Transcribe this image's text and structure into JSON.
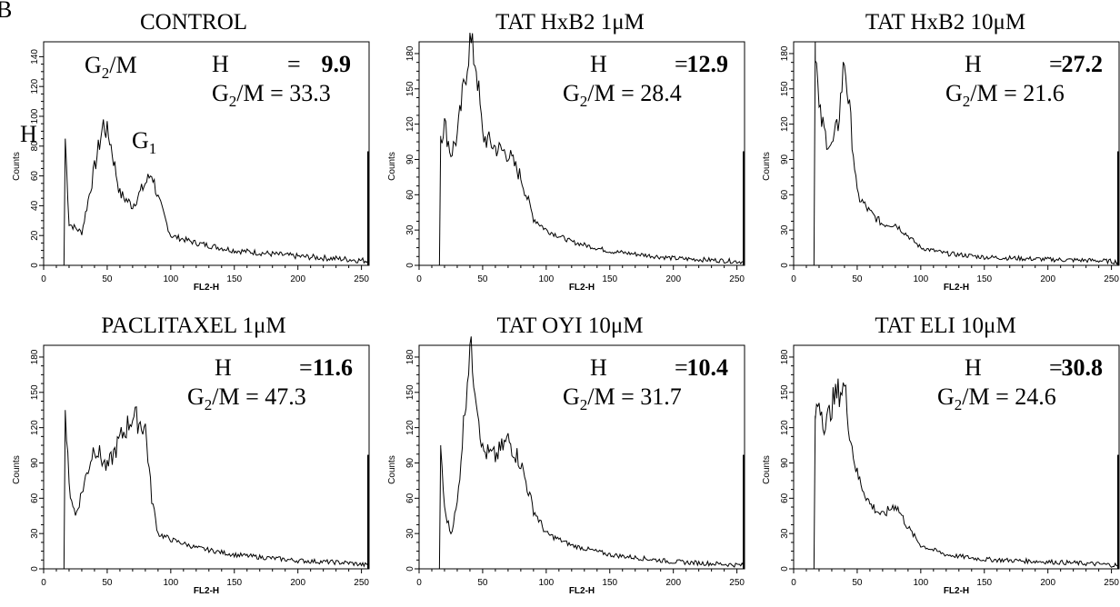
{
  "panel_letter": "B",
  "chart_data": [
    {
      "type": "line",
      "title": "CONTROL",
      "xlabel": "FL2-H",
      "ylabel": "Counts",
      "xlim": [
        0,
        256
      ],
      "ylim": [
        0,
        150
      ],
      "xticks": [
        0,
        50,
        100,
        150,
        200,
        250
      ],
      "yticks": [
        0,
        20,
        40,
        60,
        80,
        100,
        120,
        140
      ],
      "x": [
        16,
        17,
        20,
        30,
        40,
        47,
        52,
        60,
        70,
        80,
        85,
        90,
        100,
        120,
        150,
        200,
        240,
        255
      ],
      "values": [
        0,
        85,
        28,
        22,
        65,
        95,
        85,
        48,
        40,
        55,
        62,
        45,
        20,
        15,
        10,
        6,
        4,
        3
      ],
      "peak_labels": {
        "h": "H",
        "g2m": "G",
        "g2m_sub": "2",
        "g2m_tail": "/M",
        "g1": "G",
        "g1_sub": "1"
      },
      "stats": {
        "h_label": "H",
        "h_eq": "=",
        "h_value": "9.9",
        "g_label": "G",
        "g_sub": "2",
        "g_label_tail": "/M",
        "g_eq": "=",
        "g_value": "33.3"
      }
    },
    {
      "type": "line",
      "title": "TAT HxB2 1μM",
      "xlabel": "FL2-H",
      "ylabel": "Counts",
      "xlim": [
        0,
        256
      ],
      "ylim": [
        0,
        190
      ],
      "xticks": [
        0,
        50,
        100,
        150,
        200,
        250
      ],
      "yticks": [
        0,
        30,
        60,
        90,
        120,
        150,
        180
      ],
      "x": [
        16,
        17,
        20,
        25,
        30,
        40,
        45,
        50,
        60,
        70,
        80,
        90,
        100,
        120,
        150,
        200,
        240,
        255
      ],
      "values": [
        0,
        110,
        120,
        95,
        110,
        190,
        170,
        110,
        100,
        95,
        75,
        40,
        30,
        20,
        12,
        6,
        4,
        3
      ],
      "stats": {
        "h_label": "H",
        "h_eq": "=",
        "h_value": "12.9",
        "g_label": "G",
        "g_sub": "2",
        "g_label_tail": "/M",
        "g_eq": "=",
        "g_value": "28.4"
      }
    },
    {
      "type": "line",
      "title": "TAT HxB2 10μM",
      "xlabel": "FL2-H",
      "ylabel": "Counts",
      "xlim": [
        0,
        256
      ],
      "ylim": [
        0,
        190
      ],
      "xticks": [
        0,
        50,
        100,
        150,
        200,
        250
      ],
      "yticks": [
        0,
        30,
        60,
        90,
        120,
        150,
        180
      ],
      "x": [
        16,
        17,
        20,
        25,
        30,
        35,
        40,
        45,
        50,
        60,
        70,
        80,
        90,
        100,
        120,
        150,
        200,
        240,
        255
      ],
      "values": [
        0,
        190,
        130,
        110,
        100,
        120,
        175,
        120,
        60,
        45,
        35,
        35,
        25,
        15,
        10,
        7,
        5,
        4,
        3
      ],
      "stats": {
        "h_label": "H",
        "h_eq": "=",
        "h_value": "27.2",
        "g_label": "G",
        "g_sub": "2",
        "g_label_tail": "/M",
        "g_eq": "=",
        "g_value": "21.6"
      }
    },
    {
      "type": "line",
      "title": "PACLITAXEL 1μM",
      "xlabel": "FL2-H",
      "ylabel": "Counts",
      "xlim": [
        0,
        256
      ],
      "ylim": [
        0,
        190
      ],
      "xticks": [
        0,
        50,
        100,
        150,
        200,
        250
      ],
      "yticks": [
        0,
        30,
        60,
        90,
        120,
        150,
        180
      ],
      "x": [
        16,
        17,
        20,
        25,
        30,
        40,
        50,
        60,
        70,
        80,
        85,
        90,
        100,
        120,
        150,
        200,
        240,
        255
      ],
      "values": [
        0,
        135,
        70,
        45,
        65,
        105,
        85,
        110,
        130,
        120,
        60,
        30,
        25,
        18,
        12,
        7,
        5,
        3
      ],
      "stats": {
        "h_label": "H",
        "h_eq": "=",
        "h_value": "11.6",
        "g_label": "G",
        "g_sub": "2",
        "g_label_tail": "/M",
        "g_eq": "=",
        "g_value": "47.3"
      }
    },
    {
      "type": "line",
      "title": "TAT OYI 10μM",
      "xlabel": "FL2-H",
      "ylabel": "Counts",
      "xlim": [
        0,
        256
      ],
      "ylim": [
        0,
        190
      ],
      "xticks": [
        0,
        50,
        100,
        150,
        200,
        250
      ],
      "yticks": [
        0,
        30,
        60,
        90,
        120,
        150,
        180
      ],
      "x": [
        16,
        17,
        20,
        25,
        30,
        40,
        45,
        50,
        60,
        70,
        80,
        90,
        100,
        120,
        150,
        200,
        240,
        255
      ],
      "values": [
        0,
        105,
        50,
        30,
        55,
        190,
        150,
        100,
        95,
        110,
        90,
        50,
        30,
        20,
        12,
        6,
        4,
        3
      ],
      "stats": {
        "h_label": "H",
        "h_eq": "=",
        "h_value": "10.4",
        "g_label": "G",
        "g_sub": "2",
        "g_label_tail": "/M",
        "g_eq": "=",
        "g_value": "31.7"
      }
    },
    {
      "type": "line",
      "title": "TAT ELI 10μM",
      "xlabel": "FL2-H",
      "ylabel": "Counts",
      "xlim": [
        0,
        256
      ],
      "ylim": [
        0,
        190
      ],
      "xticks": [
        0,
        50,
        100,
        150,
        200,
        250
      ],
      "yticks": [
        0,
        30,
        60,
        90,
        120,
        150,
        180
      ],
      "x": [
        16,
        17,
        20,
        25,
        30,
        35,
        40,
        45,
        50,
        60,
        70,
        80,
        90,
        100,
        120,
        150,
        200,
        240,
        255
      ],
      "values": [
        0,
        130,
        145,
        120,
        140,
        150,
        155,
        110,
        80,
        55,
        45,
        55,
        35,
        20,
        12,
        8,
        6,
        4,
        3
      ],
      "stats": {
        "h_label": "H",
        "h_eq": "=",
        "h_value": "30.8",
        "g_label": "G",
        "g_sub": "2",
        "g_label_tail": "/M",
        "g_eq": "=",
        "g_value": "24.6"
      }
    }
  ]
}
